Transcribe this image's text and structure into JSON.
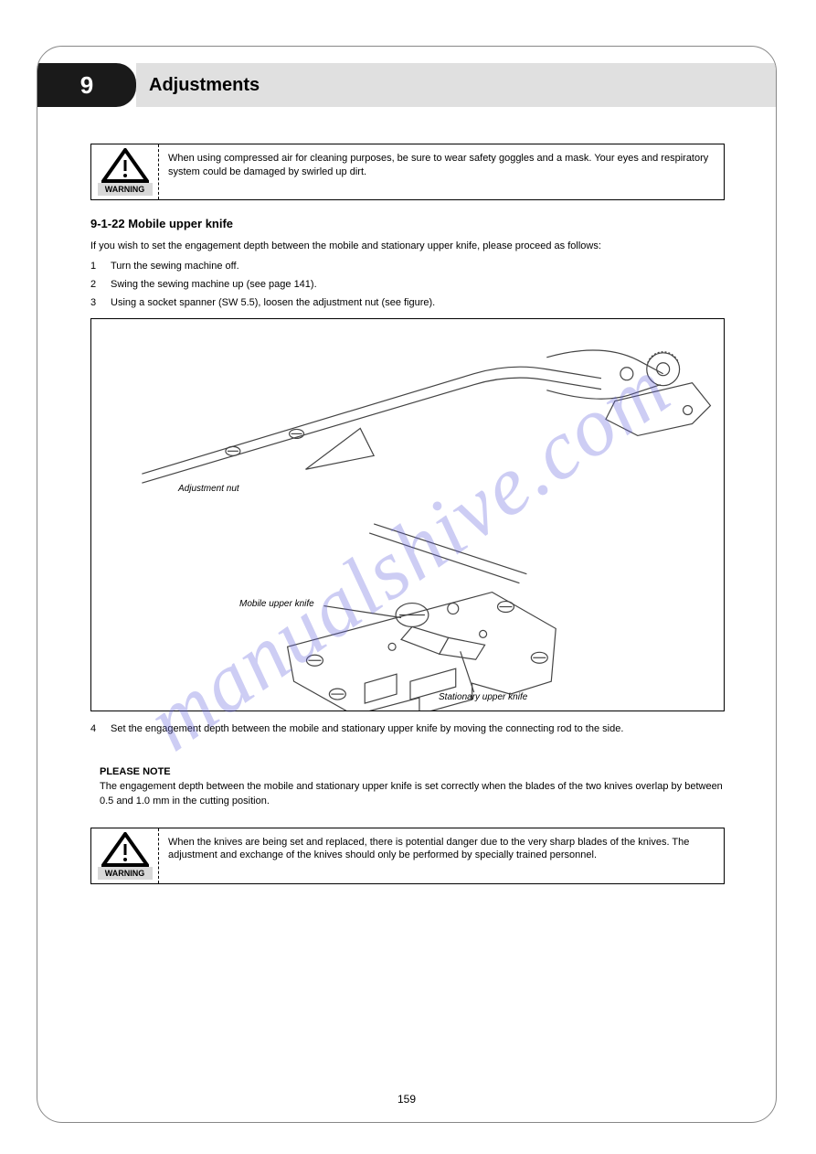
{
  "page_chapter": "9",
  "page_title": "Adjustments",
  "page_number": "159",
  "watermark": "manualshive.com",
  "warning1": {
    "label": "WARNING",
    "text": "When using compressed air for cleaning purposes, be sure to wear safety goggles and a mask. Your eyes and respiratory system could be damaged by swirled up dirt."
  },
  "section_title": "9-1-22 Mobile upper knife",
  "lead": "If you wish to set the engagement depth between the mobile and stationary upper knife, please proceed as follows:",
  "steps": [
    "Turn the sewing machine off.",
    "Swing the sewing machine up (see page 141).",
    "Using a socket spanner (SW 5.5), loosen the adjustment nut (see figure)."
  ],
  "continuation_step_num": "4",
  "continuation": "Set the engagement depth between the mobile and stationary upper knife by moving the connecting rod to the side.",
  "figure": {
    "labels": {
      "adjustment_nut": "Adjustment nut",
      "mobile_upper_knife": "Mobile upper knife",
      "stationary_upper_knife": "Stationary upper knife"
    }
  },
  "note": {
    "head": "PLEASE NOTE",
    "text": "The engagement depth between the mobile and stationary upper knife is set correctly when the blades of the two knives overlap by between 0.5 and 1.0 mm in the cutting position."
  },
  "warning2": {
    "label": "WARNING",
    "text": "When the knives are being set and replaced, there is potential danger due to the very sharp blades of the knives. The adjustment and exchange of the knives should only be performed by specially trained personnel."
  },
  "colors": {
    "page_border": "#888888",
    "tab_bg": "#1a1a1a",
    "strip_bg": "#e0e0e0",
    "warn_label_bg": "#d8d8d8",
    "watermark": "rgba(100,100,220,0.32)",
    "line": "#444444"
  }
}
